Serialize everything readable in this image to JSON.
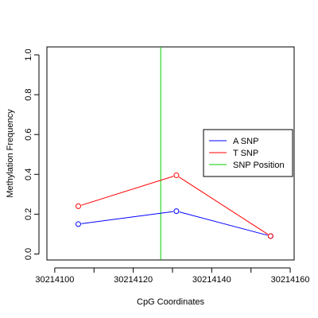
{
  "chart_data": {
    "type": "line",
    "xlabel": "CpG Coordinates",
    "ylabel": "Methylation Frequency",
    "xlim": [
      30214098,
      30214161
    ],
    "ylim": [
      -0.03,
      1.04
    ],
    "x_ticks": [
      30214100,
      30214120,
      30214140,
      30214160
    ],
    "x_tick_labels": [
      "30214100",
      "30214120",
      "30214140",
      "30214160"
    ],
    "y_ticks": [
      0.0,
      0.2,
      0.4,
      0.6,
      0.8,
      1.0
    ],
    "y_tick_labels": [
      "0.0",
      "0.2",
      "0.4",
      "0.6",
      "0.8",
      "1.0"
    ],
    "grid": false,
    "legend_position": "right",
    "series": [
      {
        "name": "A SNP",
        "color": "#0000ff",
        "x": [
          30214106,
          30214131,
          30214155
        ],
        "y": [
          0.15,
          0.215,
          0.09
        ]
      },
      {
        "name": "T SNP",
        "color": "#ff0000",
        "x": [
          30214106,
          30214131,
          30214155
        ],
        "y": [
          0.24,
          0.395,
          0.09
        ]
      }
    ],
    "snp_position": {
      "name": "SNP Position",
      "color": "#00cc00",
      "x": 30214127
    },
    "legend": [
      "A SNP",
      "T SNP",
      "SNP Position"
    ]
  }
}
